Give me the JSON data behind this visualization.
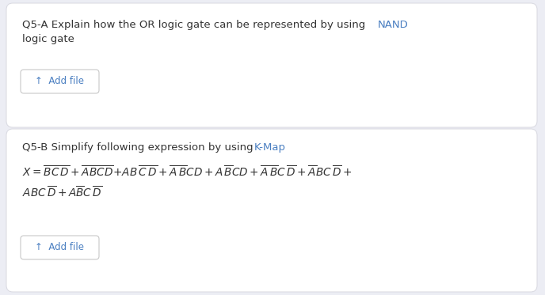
{
  "bg_color": "#ecedf4",
  "card_color": "#ffffff",
  "text_color": "#333333",
  "blue_color": "#4a7fc1",
  "button_border_color": "#c8c8c8",
  "button_text_color": "#4a7fc1",
  "card_edge_color": "#d8d8e0",
  "add_file_text": "↑  Add file",
  "q5a_black": "Q5-A Explain how the OR logic gate can be represented by using ",
  "q5a_blue": "NAND",
  "q5a_line2": "logic gate",
  "q5b_black": "Q5-B Simplify following expression by using ",
  "q5b_blue": "K-Map",
  "math_line1": "$\\mathit{X} = \\overline{\\mathit{BC}}\\,\\overline{\\mathit{D}} + \\overline{\\mathit{A}}\\overline{\\mathit{BC}}\\overline{\\mathit{D}}\\!+\\!\\mathit{AB}\\,\\overline{\\mathit{C}}\\,\\overline{\\mathit{D}} + \\overline{\\mathit{A}}\\,\\overline{\\mathit{B}}\\mathit{CD} + \\mathit{A}\\,\\overline{\\mathit{B}}\\mathit{CD} + \\overline{\\mathit{A}}\\,\\overline{\\mathit{B}}\\mathit{C}\\,\\overline{\\mathit{D}} + \\overline{\\mathit{A}}\\mathit{BC}\\,\\overline{\\mathit{D}} +$",
  "math_line2": "$\\mathit{ABC}\\,\\overline{\\mathit{D}} + \\mathit{A}\\overline{\\mathit{B}}\\mathit{C}\\,\\overline{\\mathit{D}}$",
  "figw": 6.88,
  "figh": 3.73,
  "dpi": 100
}
